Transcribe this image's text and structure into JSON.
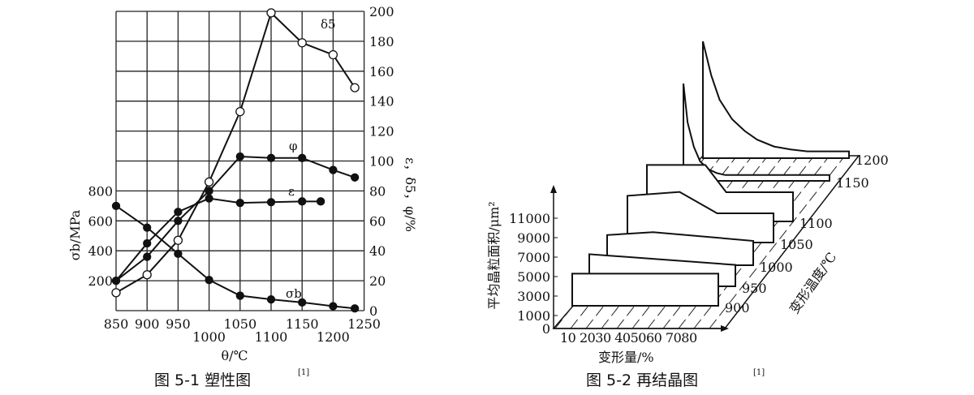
{
  "chart_data": [
    {
      "type": "line",
      "title": "图 5-1 塑性图",
      "title_ref": "[1]",
      "xlabel": "θ/℃",
      "ylabel_left": "σb/MPa",
      "ylabel_right": "ε，δ5，φ/%",
      "xlim": [
        850,
        1250
      ],
      "ylim_right": [
        0,
        200
      ],
      "ylim_left": [
        0,
        2000
      ],
      "grid": true,
      "x_ticks": [
        "850",
        "900",
        "950",
        "1000",
        "1050",
        "1100",
        "1150",
        "1200",
        "1250"
      ],
      "y_right_ticks": [
        "0",
        "20",
        "40",
        "60",
        "80",
        "100",
        "120",
        "140",
        "160",
        "180",
        "200"
      ],
      "y_left_ticks": [
        "200",
        "400",
        "600",
        "800"
      ],
      "series": [
        {
          "name": "δ5",
          "axis": "right",
          "marker": "open-circle",
          "x": [
            850,
            900,
            950,
            1000,
            1050,
            1100,
            1150,
            1200,
            1235
          ],
          "y": [
            12,
            24,
            47,
            86,
            133,
            199,
            179,
            171,
            149
          ]
        },
        {
          "name": "φ",
          "axis": "right",
          "marker": "filled-circle",
          "x": [
            850,
            900,
            950,
            1000,
            1050,
            1100,
            1150,
            1200,
            1235
          ],
          "y": [
            20,
            36,
            60,
            80,
            103,
            102,
            102,
            94,
            89
          ]
        },
        {
          "name": "ε",
          "axis": "right",
          "marker": "filled-circle",
          "x": [
            850,
            900,
            950,
            1000,
            1050,
            1100,
            1150,
            1180
          ],
          "y": [
            20,
            45,
            66,
            75,
            72,
            72.5,
            73,
            73
          ]
        },
        {
          "name": "σb",
          "axis": "left",
          "marker": "filled-circle",
          "x": [
            850,
            900,
            950,
            1000,
            1050,
            1100,
            1150,
            1200,
            1235
          ],
          "y": [
            700,
            555,
            380,
            205,
            100,
            75,
            55,
            30,
            15
          ]
        }
      ]
    },
    {
      "type": "area",
      "title": "图 5-2 再结晶图",
      "title_ref": "[1]",
      "xlabel": "变形量/%",
      "ylabel": "平均晶粒面积/μm²",
      "zlabel": "变形温度/℃",
      "x_ticks_label": "10 2030 405060 7080",
      "y_ticks": [
        "0",
        "1000",
        "3000",
        "5000",
        "7000",
        "9000",
        "11000"
      ],
      "series": [
        {
          "name": "900",
          "x": [
            10,
            80
          ],
          "y": [
            3300,
            3300
          ]
        },
        {
          "name": "950",
          "x": [
            10,
            80
          ],
          "y": [
            3300,
            2200
          ]
        },
        {
          "name": "1000",
          "x": [
            10,
            32,
            80
          ],
          "y": [
            3100,
            3400,
            2500
          ]
        },
        {
          "name": "1050",
          "x": [
            10,
            35,
            53,
            80
          ],
          "y": [
            4800,
            5200,
            3000,
            3000
          ]
        },
        {
          "name": "1100",
          "x": [
            10,
            38,
            48,
            80
          ],
          "y": [
            5800,
            5800,
            3000,
            3000
          ]
        },
        {
          "name": "1150",
          "x": [
            10,
            12,
            15,
            18,
            22,
            26,
            30,
            80
          ],
          "y": [
            10000,
            6000,
            3500,
            2000,
            1200,
            800,
            600,
            600
          ]
        },
        {
          "name": "1200",
          "x": [
            10,
            14,
            18,
            24,
            30,
            36,
            44,
            52,
            60,
            80
          ],
          "y": [
            12000,
            8500,
            6000,
            4000,
            2800,
            1900,
            1200,
            900,
            700,
            700
          ]
        }
      ]
    }
  ]
}
